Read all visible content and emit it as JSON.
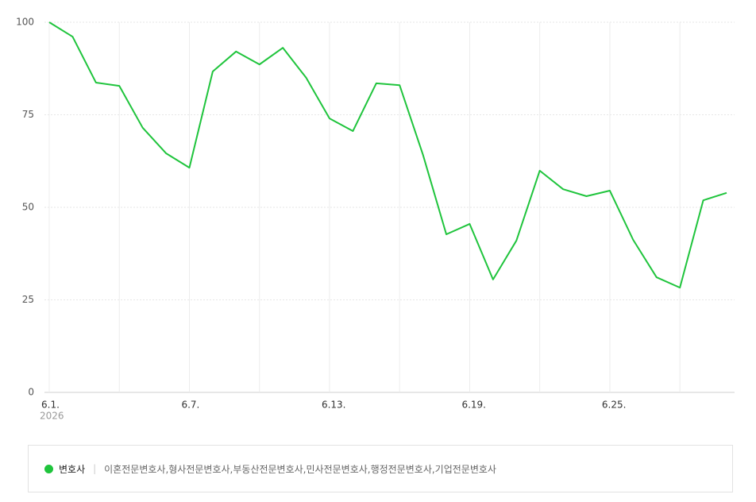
{
  "chart_data": {
    "type": "line",
    "categories": [
      "6.1.",
      null,
      null,
      null,
      null,
      null,
      "6.7.",
      null,
      null,
      null,
      null,
      null,
      "6.13.",
      null,
      null,
      null,
      null,
      null,
      "6.19.",
      null,
      null,
      null,
      null,
      null,
      "6.25.",
      null,
      null,
      null,
      null,
      null
    ],
    "year_label": "2026",
    "series": [
      {
        "name": "변호사",
        "color": "#1fc43c",
        "values": [
          100,
          96.1,
          83.7,
          82.8,
          71.5,
          64.6,
          60.7,
          86.7,
          92.1,
          88.6,
          93.1,
          85.0,
          74.0,
          70.6,
          83.5,
          83.0,
          64.2,
          42.7,
          45.5,
          30.5,
          41.0,
          59.9,
          54.9,
          53.0,
          54.5,
          41.2,
          31.1,
          28.3,
          51.9,
          53.9
        ]
      }
    ],
    "legend_keywords": "이혼전문변호사,형사전문변호사,부동산전문변호사,민사전문변호사,행정전문변호사,기업전문변호사",
    "ylim": [
      0,
      100
    ],
    "yticks": [
      0,
      25,
      50,
      75,
      100
    ],
    "grid": true
  }
}
